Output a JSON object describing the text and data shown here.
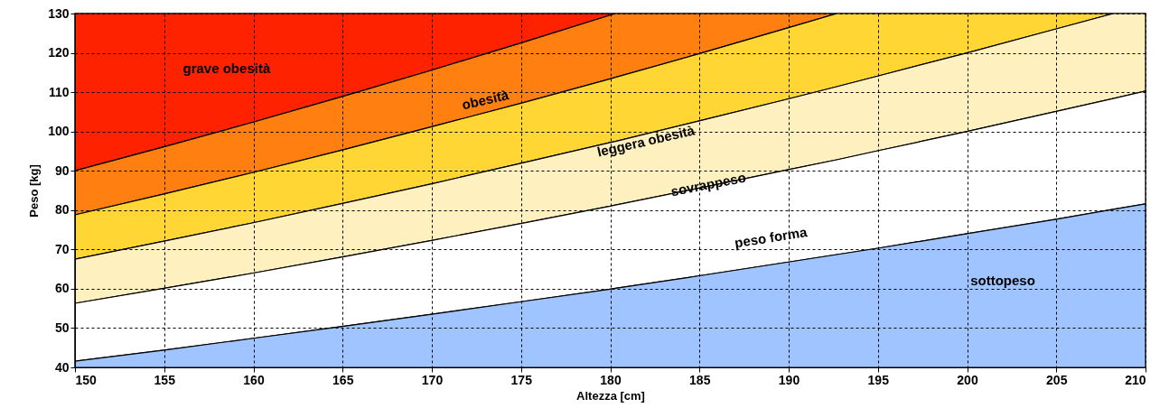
{
  "chart_data": {
    "type": "area",
    "xlabel": "Altezza [cm]",
    "ylabel": "Peso [kg]",
    "xlim": [
      150,
      210
    ],
    "xticks": [
      150,
      155,
      160,
      165,
      170,
      175,
      180,
      185,
      190,
      195,
      200,
      205,
      210
    ],
    "ylim": [
      40,
      130
    ],
    "yticks": [
      40,
      50,
      60,
      70,
      80,
      90,
      100,
      110,
      120,
      130
    ],
    "grid": true,
    "x": [
      150,
      155,
      160,
      165,
      170,
      175,
      180,
      180.3,
      185,
      190,
      192.7,
      195,
      200,
      205,
      208.2,
      210
    ],
    "series": [
      {
        "name": "grave obesità",
        "color": "#ff2200",
        "values": [
          130,
          130,
          130,
          130,
          130,
          130,
          130,
          130,
          130,
          130,
          130,
          130,
          130,
          130,
          130,
          130
        ]
      },
      {
        "name": "obesità",
        "color": "#ff8010",
        "values": [
          90,
          96.1,
          102.4,
          108.9,
          115.6,
          122.5,
          129.6,
          130,
          130,
          130,
          130,
          130,
          130,
          130,
          130,
          130
        ]
      },
      {
        "name": "leggera obesità",
        "color": "#ffd633",
        "values": [
          78.8,
          84.1,
          89.6,
          95.3,
          101.2,
          107.2,
          113.4,
          113.8,
          119.8,
          126.4,
          130,
          130,
          130,
          130,
          130,
          130
        ]
      },
      {
        "name": "sovrappeso",
        "color": "#fff0c0",
        "values": [
          67.5,
          72.1,
          76.8,
          81.7,
          86.7,
          91.9,
          97.2,
          97.5,
          102.7,
          108.3,
          111.4,
          114.1,
          120.0,
          126.1,
          130,
          130
        ]
      },
      {
        "name": "peso forma",
        "color": "#ffffff",
        "values": [
          56.3,
          60.1,
          64.0,
          68.1,
          72.3,
          76.6,
          81.0,
          81.3,
          85.6,
          90.3,
          92.8,
          95.1,
          100.0,
          105.1,
          108.4,
          110.3
        ]
      },
      {
        "name": "sottopeso",
        "color": "#a0c4ff",
        "values": [
          41.6,
          44.4,
          47.4,
          50.4,
          53.5,
          56.7,
          59.9,
          60.1,
          63.3,
          66.8,
          68.7,
          70.3,
          74.0,
          77.7,
          80.2,
          81.6
        ]
      }
    ]
  }
}
